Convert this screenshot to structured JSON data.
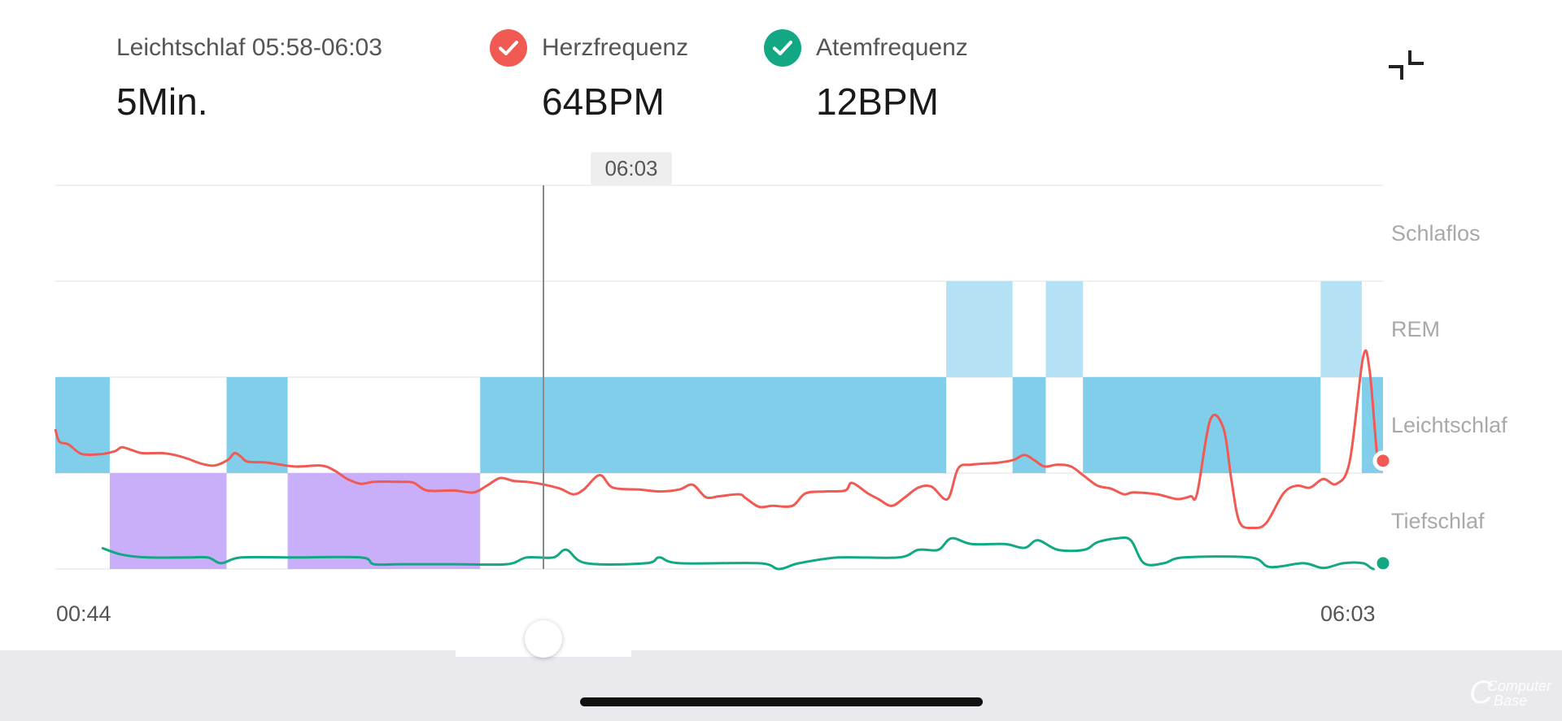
{
  "header": {
    "stage_label": "Leichtschlaf  05:58-06:03",
    "stage_value": "5Min.",
    "heart": {
      "label": "Herzfrequenz",
      "value": "64BPM",
      "color": "#f05a52",
      "icon": "check-icon"
    },
    "breath": {
      "label": "Atemfrequenz",
      "value": "12BPM",
      "color": "#13a884",
      "icon": "check-icon"
    },
    "collapse_icon": "collapse-arrows-icon"
  },
  "chart_data": {
    "type": "line",
    "x_start": "00:44",
    "x_end": "06:03",
    "cursor_time": "06:03",
    "stage_labels": [
      "Schlaflos",
      "REM",
      "Leichtschlaf",
      "Tiefschlaf"
    ],
    "stage_colors": {
      "REM": "#b4e2f4",
      "Leichtschlaf": "#81ceeb",
      "Tiefschlaf": "#c9aefa"
    },
    "hypnogram": [
      {
        "stage": "Leichtschlaf",
        "start": 0.0,
        "end": 0.041
      },
      {
        "stage": "Tiefschlaf",
        "start": 0.041,
        "end": 0.129
      },
      {
        "stage": "Leichtschlaf",
        "start": 0.129,
        "end": 0.175
      },
      {
        "stage": "Tiefschlaf",
        "start": 0.175,
        "end": 0.32
      },
      {
        "stage": "Leichtschlaf",
        "start": 0.32,
        "end": 0.671
      },
      {
        "stage": "REM",
        "start": 0.671,
        "end": 0.721
      },
      {
        "stage": "Leichtschlaf",
        "start": 0.721,
        "end": 0.746
      },
      {
        "stage": "REM",
        "start": 0.746,
        "end": 0.774
      },
      {
        "stage": "Leichtschlaf",
        "start": 0.774,
        "end": 0.953
      },
      {
        "stage": "REM",
        "start": 0.953,
        "end": 0.984
      },
      {
        "stage": "Leichtschlaf",
        "start": 0.984,
        "end": 1.0
      }
    ],
    "series": [
      {
        "name": "Herzfrequenz",
        "color": "#f05a52",
        "values": [
          [
            0.0,
            0.95
          ],
          [
            0.003,
            0.82
          ],
          [
            0.01,
            0.79
          ],
          [
            0.02,
            0.69
          ],
          [
            0.035,
            0.69
          ],
          [
            0.045,
            0.72
          ],
          [
            0.05,
            0.76
          ],
          [
            0.058,
            0.73
          ],
          [
            0.065,
            0.7
          ],
          [
            0.08,
            0.7
          ],
          [
            0.09,
            0.68
          ],
          [
            0.1,
            0.64
          ],
          [
            0.11,
            0.59
          ],
          [
            0.12,
            0.57
          ],
          [
            0.13,
            0.63
          ],
          [
            0.135,
            0.7
          ],
          [
            0.14,
            0.66
          ],
          [
            0.145,
            0.61
          ],
          [
            0.16,
            0.6
          ],
          [
            0.18,
            0.56
          ],
          [
            0.2,
            0.57
          ],
          [
            0.21,
            0.52
          ],
          [
            0.22,
            0.43
          ],
          [
            0.23,
            0.38
          ],
          [
            0.24,
            0.4
          ],
          [
            0.26,
            0.4
          ],
          [
            0.27,
            0.39
          ],
          [
            0.28,
            0.31
          ],
          [
            0.3,
            0.31
          ],
          [
            0.315,
            0.29
          ],
          [
            0.325,
            0.36
          ],
          [
            0.335,
            0.44
          ],
          [
            0.345,
            0.41
          ],
          [
            0.355,
            0.4
          ],
          [
            0.365,
            0.38
          ],
          [
            0.38,
            0.33
          ],
          [
            0.39,
            0.27
          ],
          [
            0.398,
            0.32
          ],
          [
            0.41,
            0.47
          ],
          [
            0.42,
            0.34
          ],
          [
            0.44,
            0.32
          ],
          [
            0.455,
            0.3
          ],
          [
            0.47,
            0.32
          ],
          [
            0.48,
            0.37
          ],
          [
            0.49,
            0.24
          ],
          [
            0.5,
            0.25
          ],
          [
            0.515,
            0.27
          ],
          [
            0.52,
            0.23
          ],
          [
            0.53,
            0.14
          ],
          [
            0.54,
            0.15
          ],
          [
            0.555,
            0.15
          ],
          [
            0.565,
            0.28
          ],
          [
            0.58,
            0.3
          ],
          [
            0.595,
            0.31
          ],
          [
            0.6,
            0.39
          ],
          [
            0.612,
            0.28
          ],
          [
            0.62,
            0.22
          ],
          [
            0.63,
            0.15
          ],
          [
            0.64,
            0.24
          ],
          [
            0.65,
            0.34
          ],
          [
            0.66,
            0.35
          ],
          [
            0.672,
            0.22
          ],
          [
            0.68,
            0.54
          ],
          [
            0.69,
            0.58
          ],
          [
            0.71,
            0.6
          ],
          [
            0.722,
            0.63
          ],
          [
            0.73,
            0.68
          ],
          [
            0.738,
            0.62
          ],
          [
            0.745,
            0.56
          ],
          [
            0.755,
            0.58
          ],
          [
            0.765,
            0.56
          ],
          [
            0.775,
            0.46
          ],
          [
            0.785,
            0.36
          ],
          [
            0.795,
            0.33
          ],
          [
            0.805,
            0.27
          ],
          [
            0.812,
            0.29
          ],
          [
            0.83,
            0.27
          ],
          [
            0.845,
            0.22
          ],
          [
            0.855,
            0.25
          ],
          [
            0.86,
            0.28
          ],
          [
            0.87,
            1.05
          ],
          [
            0.88,
            0.95
          ],
          [
            0.886,
            0.4
          ],
          [
            0.892,
            -0.02
          ],
          [
            0.902,
            -0.08
          ],
          [
            0.912,
            -0.03
          ],
          [
            0.925,
            0.28
          ],
          [
            0.935,
            0.36
          ],
          [
            0.945,
            0.34
          ],
          [
            0.955,
            0.43
          ],
          [
            0.965,
            0.38
          ],
          [
            0.975,
            0.62
          ],
          [
            0.985,
            1.7
          ],
          [
            0.99,
            1.55
          ],
          [
            0.996,
            0.62
          ],
          [
            1.0,
            0.62
          ]
        ]
      },
      {
        "name": "Atemfrequenz",
        "color": "#13a884",
        "values": [
          [
            0.035,
            0.22
          ],
          [
            0.05,
            0.15
          ],
          [
            0.07,
            0.12
          ],
          [
            0.1,
            0.12
          ],
          [
            0.115,
            0.12
          ],
          [
            0.125,
            0.06
          ],
          [
            0.14,
            0.12
          ],
          [
            0.18,
            0.12
          ],
          [
            0.23,
            0.12
          ],
          [
            0.24,
            0.05
          ],
          [
            0.26,
            0.05
          ],
          [
            0.3,
            0.05
          ],
          [
            0.34,
            0.05
          ],
          [
            0.355,
            0.12
          ],
          [
            0.375,
            0.12
          ],
          [
            0.385,
            0.2
          ],
          [
            0.4,
            0.06
          ],
          [
            0.445,
            0.06
          ],
          [
            0.455,
            0.12
          ],
          [
            0.47,
            0.06
          ],
          [
            0.53,
            0.06
          ],
          [
            0.545,
            0.0
          ],
          [
            0.56,
            0.06
          ],
          [
            0.59,
            0.12
          ],
          [
            0.635,
            0.12
          ],
          [
            0.65,
            0.2
          ],
          [
            0.665,
            0.2
          ],
          [
            0.675,
            0.32
          ],
          [
            0.69,
            0.26
          ],
          [
            0.715,
            0.26
          ],
          [
            0.73,
            0.22
          ],
          [
            0.74,
            0.3
          ],
          [
            0.755,
            0.2
          ],
          [
            0.775,
            0.2
          ],
          [
            0.785,
            0.28
          ],
          [
            0.8,
            0.32
          ],
          [
            0.81,
            0.3
          ],
          [
            0.82,
            0.06
          ],
          [
            0.835,
            0.06
          ],
          [
            0.85,
            0.12
          ],
          [
            0.9,
            0.12
          ],
          [
            0.915,
            0.02
          ],
          [
            0.94,
            0.06
          ],
          [
            0.955,
            0.01
          ],
          [
            0.97,
            0.06
          ],
          [
            0.985,
            0.06
          ],
          [
            0.993,
            0.0
          ],
          [
            1.0,
            0.06
          ]
        ]
      }
    ]
  }
}
